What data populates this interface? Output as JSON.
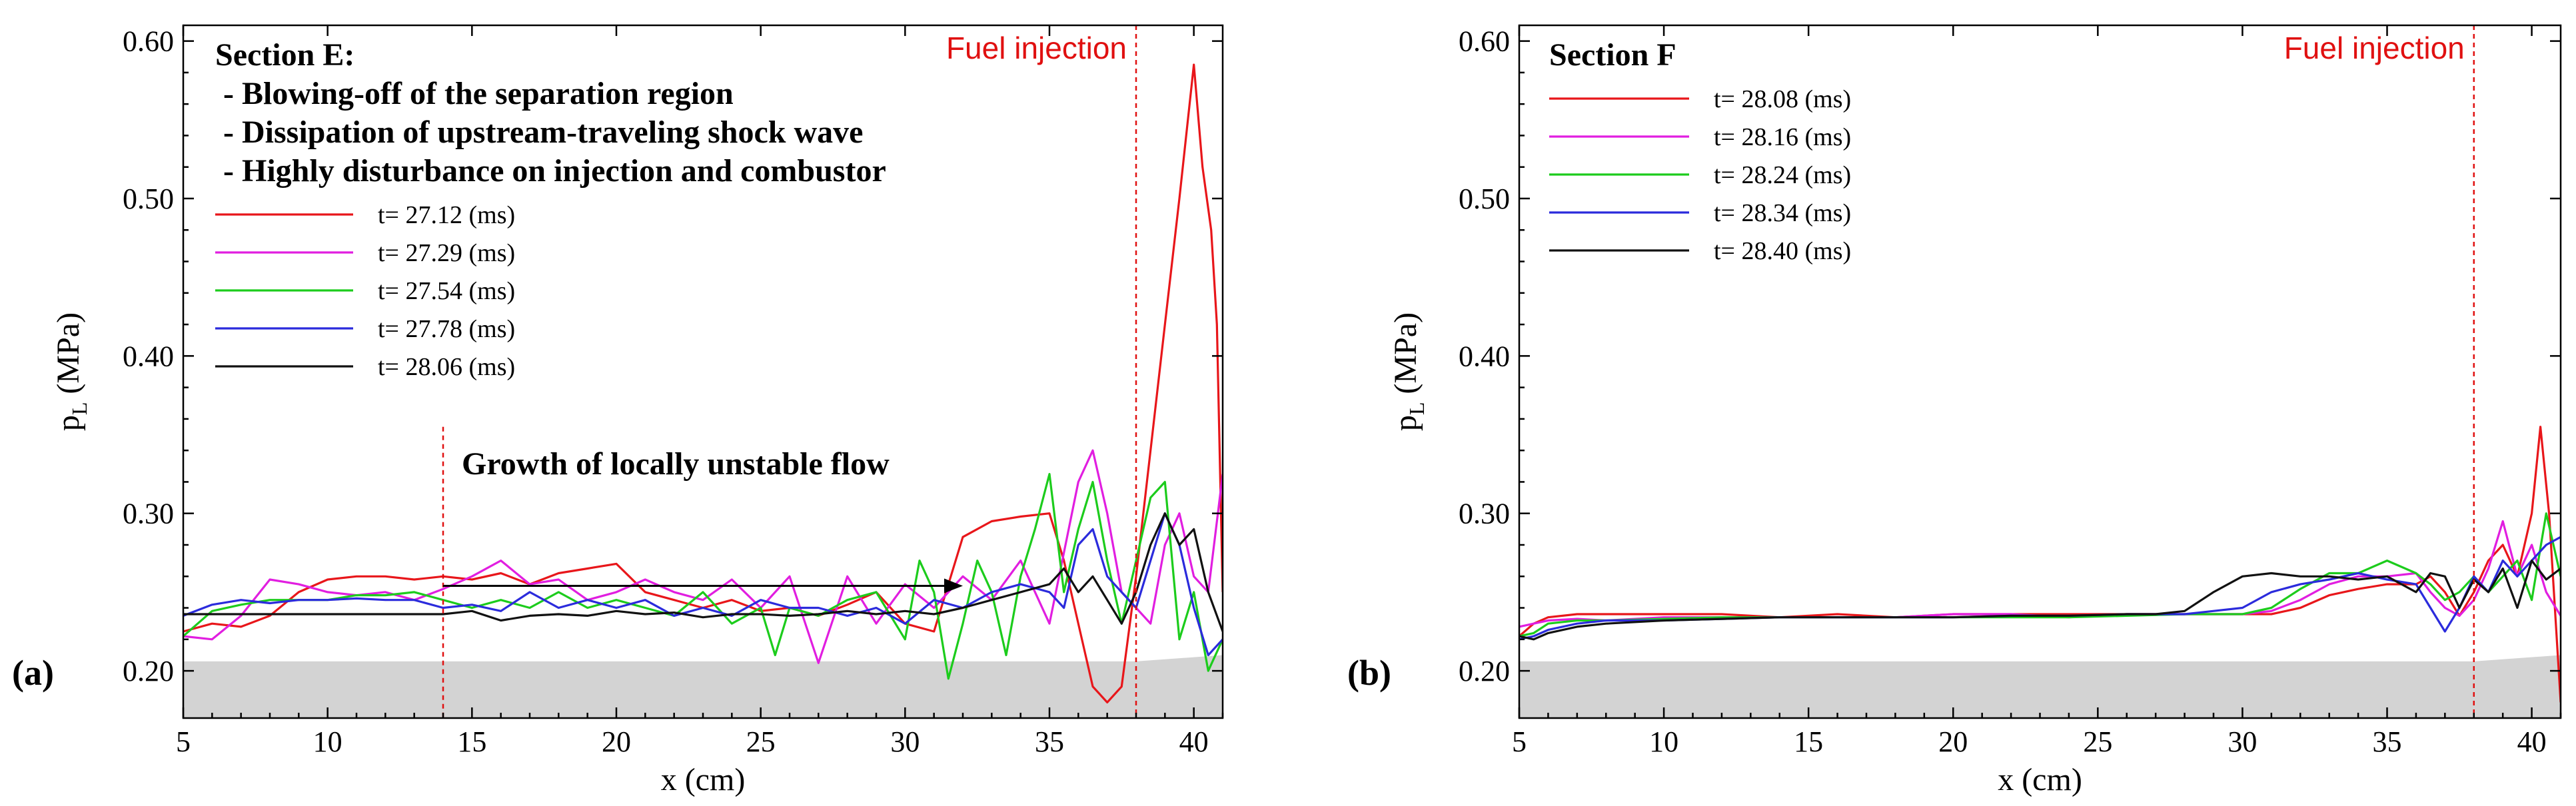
{
  "colors": {
    "red": "#e8161a",
    "magenta": "#e11ee0",
    "green": "#1ccc1c",
    "blue": "#2b2bdc",
    "black": "#111111",
    "wall_fill": "#d3d3d3",
    "fuel_line": "#e01010"
  },
  "chart_data": [
    {
      "type": "line",
      "panel_label": "(a)",
      "xlabel": "x (cm)",
      "ylabel_main": "p",
      "ylabel_sub": "L",
      "ylabel_unit": " (MPa)",
      "xlim": [
        5,
        41
      ],
      "ylim": [
        0.17,
        0.61
      ],
      "xticks": [
        5,
        10,
        15,
        20,
        25,
        30,
        35,
        40
      ],
      "yticks": [
        0.2,
        0.3,
        0.4,
        0.5,
        0.6
      ],
      "ytick_labels": [
        "0.20",
        "0.30",
        "0.40",
        "0.50",
        "0.60"
      ],
      "fuel_injection_x": 38,
      "fuel_injection_label": "Fuel injection",
      "section_title": "Section E:",
      "notes": [
        " - Blowing-off of the separation region",
        " - Dissipation of upstream-traveling shock wave",
        " - Highly disturbance on injection and combustor"
      ],
      "growth_annotation": {
        "text": "Growth of locally unstable flow",
        "marker_x": 14,
        "arrow_from_x": 14,
        "arrow_to_x": 32,
        "arrow_y": 0.254,
        "marker_y_top": 0.355
      },
      "wall_profile": {
        "x": [
          5,
          38,
          41
        ],
        "y": [
          0.206,
          0.206,
          0.21
        ]
      },
      "series": [
        {
          "name": "t= 27.12 (ms)",
          "color_key": "red",
          "x": [
            5,
            6,
            7,
            8,
            9,
            10,
            11,
            12,
            13,
            14,
            15,
            16,
            17,
            18,
            19,
            20,
            21,
            22,
            23,
            24,
            25,
            26,
            27,
            28,
            29,
            30,
            31,
            32,
            33,
            34,
            35,
            35.5,
            36,
            36.5,
            37,
            37.5,
            38,
            38.5,
            39,
            39.5,
            40,
            40.3,
            40.6,
            40.8,
            41
          ],
          "y": [
            0.225,
            0.23,
            0.228,
            0.235,
            0.25,
            0.258,
            0.26,
            0.26,
            0.258,
            0.26,
            0.258,
            0.262,
            0.255,
            0.262,
            0.265,
            0.268,
            0.25,
            0.245,
            0.24,
            0.245,
            0.238,
            0.24,
            0.235,
            0.242,
            0.25,
            0.23,
            0.225,
            0.285,
            0.295,
            0.298,
            0.3,
            0.27,
            0.23,
            0.19,
            0.18,
            0.19,
            0.26,
            0.34,
            0.42,
            0.5,
            0.585,
            0.52,
            0.48,
            0.42,
            0.25
          ]
        },
        {
          "name": "t= 27.29 (ms)",
          "color_key": "magenta",
          "x": [
            5,
            6,
            7,
            8,
            9,
            10,
            11,
            12,
            13,
            14,
            15,
            16,
            17,
            18,
            19,
            20,
            21,
            22,
            23,
            24,
            25,
            26,
            27,
            28,
            29,
            30,
            31,
            32,
            33,
            34,
            35,
            36,
            36.5,
            37,
            37.5,
            38,
            38.5,
            39,
            39.5,
            40,
            40.5,
            41
          ],
          "y": [
            0.222,
            0.22,
            0.235,
            0.258,
            0.255,
            0.25,
            0.248,
            0.25,
            0.245,
            0.252,
            0.26,
            0.27,
            0.255,
            0.258,
            0.245,
            0.25,
            0.258,
            0.25,
            0.245,
            0.258,
            0.24,
            0.26,
            0.205,
            0.26,
            0.23,
            0.255,
            0.24,
            0.26,
            0.245,
            0.27,
            0.23,
            0.32,
            0.34,
            0.3,
            0.25,
            0.24,
            0.23,
            0.28,
            0.3,
            0.26,
            0.25,
            0.325
          ]
        },
        {
          "name": "t= 27.54 (ms)",
          "color_key": "green",
          "x": [
            5,
            6,
            7,
            8,
            9,
            10,
            11,
            12,
            13,
            14,
            15,
            16,
            17,
            18,
            19,
            20,
            21,
            22,
            23,
            24,
            25,
            25.5,
            26,
            27,
            28,
            29,
            30,
            30.5,
            31,
            31.5,
            32,
            32.5,
            33,
            33.5,
            34,
            34.5,
            35,
            35.5,
            36,
            36.5,
            37,
            37.5,
            38,
            38.5,
            39,
            39.5,
            40,
            40.5,
            41
          ],
          "y": [
            0.222,
            0.238,
            0.242,
            0.245,
            0.245,
            0.245,
            0.248,
            0.248,
            0.25,
            0.245,
            0.24,
            0.245,
            0.24,
            0.25,
            0.24,
            0.245,
            0.24,
            0.235,
            0.25,
            0.23,
            0.24,
            0.21,
            0.24,
            0.235,
            0.245,
            0.25,
            0.22,
            0.27,
            0.25,
            0.195,
            0.23,
            0.27,
            0.25,
            0.21,
            0.26,
            0.29,
            0.325,
            0.25,
            0.29,
            0.32,
            0.27,
            0.23,
            0.27,
            0.31,
            0.32,
            0.22,
            0.25,
            0.2,
            0.22
          ]
        },
        {
          "name": "t= 27.78 (ms)",
          "color_key": "blue",
          "x": [
            5,
            6,
            7,
            8,
            9,
            10,
            11,
            12,
            13,
            14,
            15,
            16,
            17,
            18,
            19,
            20,
            21,
            22,
            23,
            24,
            25,
            26,
            27,
            28,
            29,
            30,
            31,
            32,
            33,
            34,
            35,
            35.5,
            36,
            36.5,
            37,
            37.5,
            38,
            38.5,
            39,
            39.5,
            40,
            40.5,
            41
          ],
          "y": [
            0.235,
            0.242,
            0.245,
            0.243,
            0.245,
            0.245,
            0.246,
            0.245,
            0.245,
            0.24,
            0.242,
            0.238,
            0.25,
            0.24,
            0.245,
            0.24,
            0.245,
            0.235,
            0.24,
            0.235,
            0.245,
            0.24,
            0.24,
            0.235,
            0.24,
            0.23,
            0.245,
            0.24,
            0.25,
            0.255,
            0.25,
            0.24,
            0.28,
            0.29,
            0.26,
            0.25,
            0.24,
            0.27,
            0.3,
            0.28,
            0.24,
            0.21,
            0.22
          ]
        },
        {
          "name": "t= 28.06 (ms)",
          "color_key": "black",
          "x": [
            5,
            6,
            7,
            8,
            9,
            10,
            11,
            12,
            13,
            14,
            15,
            16,
            17,
            18,
            19,
            20,
            21,
            22,
            23,
            24,
            25,
            26,
            27,
            28,
            29,
            30,
            31,
            32,
            33,
            34,
            35,
            35.5,
            36,
            36.5,
            37,
            37.5,
            38,
            38.5,
            39,
            39.5,
            40,
            40.5,
            41
          ],
          "y": [
            0.236,
            0.236,
            0.236,
            0.236,
            0.236,
            0.236,
            0.236,
            0.236,
            0.236,
            0.236,
            0.238,
            0.232,
            0.235,
            0.236,
            0.235,
            0.238,
            0.236,
            0.237,
            0.234,
            0.236,
            0.236,
            0.235,
            0.236,
            0.238,
            0.236,
            0.238,
            0.236,
            0.24,
            0.245,
            0.25,
            0.255,
            0.265,
            0.25,
            0.26,
            0.245,
            0.23,
            0.25,
            0.28,
            0.3,
            0.28,
            0.29,
            0.25,
            0.225
          ]
        }
      ]
    },
    {
      "type": "line",
      "panel_label": "(b)",
      "xlabel": "x (cm)",
      "ylabel_main": "p",
      "ylabel_sub": "L",
      "ylabel_unit": " (MPa)",
      "xlim": [
        5,
        41
      ],
      "ylim": [
        0.17,
        0.61
      ],
      "xticks": [
        5,
        10,
        15,
        20,
        25,
        30,
        35,
        40
      ],
      "yticks": [
        0.2,
        0.3,
        0.4,
        0.5,
        0.6
      ],
      "ytick_labels": [
        "0.20",
        "0.30",
        "0.40",
        "0.50",
        "0.60"
      ],
      "fuel_injection_x": 38,
      "fuel_injection_label": "Fuel injection",
      "section_title": "Section F",
      "wall_profile": {
        "x": [
          5,
          38,
          41
        ],
        "y": [
          0.206,
          0.206,
          0.21
        ]
      },
      "series": [
        {
          "name": "t= 28.08 (ms)",
          "color_key": "red",
          "x": [
            5,
            5.5,
            6,
            7,
            8,
            9,
            10,
            12,
            14,
            16,
            18,
            20,
            22,
            24,
            26,
            28,
            29,
            30,
            31,
            32,
            33,
            34,
            35,
            36,
            36.5,
            37,
            37.5,
            38,
            38.5,
            39,
            39.5,
            40,
            40.3,
            40.6,
            41
          ],
          "y": [
            0.222,
            0.23,
            0.234,
            0.236,
            0.236,
            0.236,
            0.236,
            0.236,
            0.234,
            0.236,
            0.234,
            0.236,
            0.236,
            0.236,
            0.236,
            0.236,
            0.236,
            0.236,
            0.236,
            0.24,
            0.248,
            0.252,
            0.255,
            0.255,
            0.26,
            0.25,
            0.235,
            0.25,
            0.27,
            0.28,
            0.26,
            0.3,
            0.355,
            0.3,
            0.18
          ]
        },
        {
          "name": "t= 28.16 (ms)",
          "color_key": "magenta",
          "x": [
            5,
            5.5,
            6,
            7,
            8,
            10,
            12,
            14,
            16,
            18,
            20,
            22,
            24,
            26,
            28,
            30,
            31,
            32,
            33,
            34,
            35,
            36,
            36.5,
            37,
            37.5,
            38,
            38.5,
            39,
            39.5,
            40,
            40.5,
            41
          ],
          "y": [
            0.228,
            0.23,
            0.232,
            0.233,
            0.232,
            0.234,
            0.234,
            0.234,
            0.234,
            0.234,
            0.236,
            0.236,
            0.234,
            0.236,
            0.236,
            0.236,
            0.238,
            0.245,
            0.255,
            0.26,
            0.26,
            0.262,
            0.25,
            0.24,
            0.235,
            0.245,
            0.265,
            0.295,
            0.26,
            0.28,
            0.25,
            0.235
          ]
        },
        {
          "name": "t= 28.24 (ms)",
          "color_key": "green",
          "x": [
            5,
            5.5,
            6,
            7,
            8,
            10,
            12,
            14,
            16,
            18,
            20,
            22,
            24,
            26,
            28,
            30,
            31,
            32,
            33,
            34,
            35,
            36,
            36.5,
            37,
            37.5,
            38,
            38.5,
            39,
            39.5,
            40,
            40.5,
            41
          ],
          "y": [
            0.222,
            0.224,
            0.23,
            0.232,
            0.232,
            0.233,
            0.234,
            0.234,
            0.234,
            0.234,
            0.234,
            0.234,
            0.234,
            0.235,
            0.236,
            0.236,
            0.24,
            0.252,
            0.262,
            0.262,
            0.27,
            0.262,
            0.255,
            0.245,
            0.25,
            0.26,
            0.25,
            0.26,
            0.27,
            0.245,
            0.3,
            0.26
          ]
        },
        {
          "name": "t= 28.34 (ms)",
          "color_key": "blue",
          "x": [
            5,
            5.5,
            6,
            7,
            8,
            10,
            12,
            14,
            16,
            18,
            20,
            22,
            24,
            26,
            28,
            30,
            31,
            32,
            33,
            34,
            35,
            36,
            36.5,
            37,
            37.5,
            38,
            38.5,
            39,
            39.5,
            40,
            40.5,
            41
          ],
          "y": [
            0.22,
            0.222,
            0.226,
            0.23,
            0.232,
            0.232,
            0.233,
            0.234,
            0.234,
            0.234,
            0.234,
            0.235,
            0.235,
            0.236,
            0.236,
            0.24,
            0.25,
            0.255,
            0.258,
            0.262,
            0.258,
            0.255,
            0.24,
            0.225,
            0.24,
            0.26,
            0.25,
            0.27,
            0.26,
            0.27,
            0.28,
            0.285
          ]
        },
        {
          "name": "t= 28.40 (ms)",
          "color_key": "black",
          "x": [
            5,
            5.5,
            6,
            7,
            8,
            10,
            12,
            14,
            16,
            18,
            20,
            22,
            24,
            26,
            27,
            28,
            29,
            30,
            31,
            32,
            33,
            34,
            35,
            36,
            36.5,
            37,
            37.5,
            38,
            38.5,
            39,
            39.5,
            40,
            40.5,
            41
          ],
          "y": [
            0.222,
            0.22,
            0.224,
            0.228,
            0.23,
            0.232,
            0.233,
            0.234,
            0.234,
            0.234,
            0.234,
            0.235,
            0.235,
            0.236,
            0.236,
            0.238,
            0.25,
            0.26,
            0.262,
            0.26,
            0.26,
            0.258,
            0.26,
            0.25,
            0.262,
            0.26,
            0.24,
            0.258,
            0.25,
            0.265,
            0.24,
            0.27,
            0.258,
            0.265
          ]
        }
      ]
    }
  ]
}
